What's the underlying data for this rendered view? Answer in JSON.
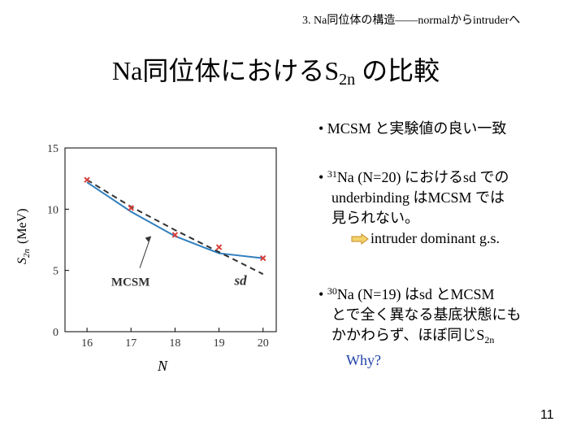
{
  "header": "3. Na同位体の構造――normalからintruderへ",
  "title": {
    "main": "Na同位体における",
    "s": "S",
    "sub": "2n",
    "tail": " の比較"
  },
  "bullets": {
    "b1": "• MCSM と実験値の良い一致",
    "b2_sup": "31",
    "b2_line1": "Na (N=20) におけるsd での",
    "b2_line2": "underbinding はMCSM では",
    "b2_line3": "見られない。",
    "b2_arrow_text": "intruder dominant g.s.",
    "b3_sup": "30",
    "b3_line1": "Na (N=19) はsd とMCSM",
    "b3_line2": "とで全く異なる基底状態にも",
    "b3_line3_pre": "かかわらず、ほぼ同じS",
    "b3_line3_sub": "2n",
    "why": "Why?"
  },
  "page_number": "11",
  "chart_data": {
    "type": "line",
    "x": [
      16,
      17,
      18,
      19,
      20
    ],
    "xlabel": "N",
    "ylabel_s": "S",
    "ylabel_sub": "2n",
    "ylabel_unit": "(MeV)",
    "xlim": [
      15.5,
      20.3
    ],
    "ylim": [
      0,
      15
    ],
    "xticks": [
      "16",
      "17",
      "18",
      "19",
      "20"
    ],
    "yticks": [
      "0",
      "5",
      "10",
      "15"
    ],
    "series": [
      {
        "name": "MCSM",
        "style": "solid",
        "color": "#2f7fbf",
        "values": [
          12.2,
          9.8,
          7.8,
          6.4,
          6.0
        ]
      },
      {
        "name": "sd",
        "style": "dashed",
        "color": "#333333",
        "values": [
          12.4,
          10.2,
          8.3,
          6.5,
          4.7
        ]
      },
      {
        "name": "exp",
        "style": "points",
        "color": "#d9403a",
        "values": [
          12.4,
          10.1,
          7.9,
          6.9,
          6.0
        ]
      }
    ],
    "annotations": {
      "mcsm": "MCSM",
      "sd": "sd"
    }
  }
}
